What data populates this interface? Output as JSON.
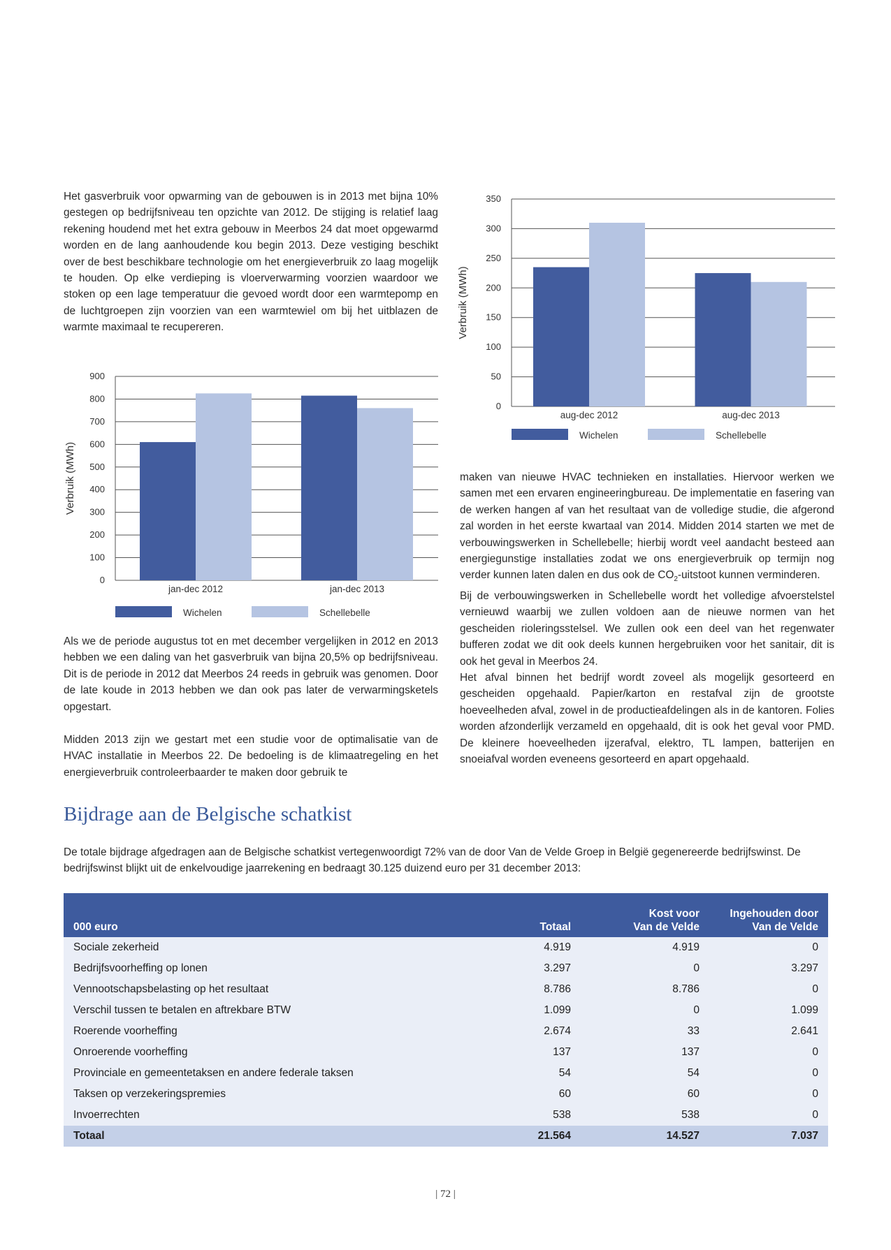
{
  "paragraphs": {
    "intro_left": "Het gasverbruik voor opwarming van de gebouwen is in 2013 met bijna 10% gestegen op bedrijfsniveau ten opzichte van 2012. De stijging is relatief laag rekening houdend met het extra gebouw in Meerbos 24 dat moet opgewarmd worden en de lang aanhoudende kou begin 2013. Deze vestiging beschikt over de best beschikbare technologie om het energieverbruik zo laag mogelijk te houden. Op elke verdieping is vloerverwarming voorzien waardoor we stoken op een lage temperatuur die gevoed wordt door een warmtepomp en de luchtgroepen zijn voorzien van een warmtewiel om bij het uitblazen de warmte maximaal te recupereren.",
    "compare_left": "Als we de periode augustus tot en met december vergelijken in 2012 en 2013 hebben we een daling van het gasverbruik van bijna 20,5% op bedrijfsniveau. Dit is de periode in 2012 dat Meerbos 24 reeds in gebruik was genomen. Door de late koude in 2013 hebben we dan ook pas later de verwarmingsketels opgestart.",
    "study_left": "Midden 2013 zijn we gestart met een studie voor de optimalisatie van de HVAC installatie in Meerbos 22. De bedoeling is de klimaatregeling en het energieverbruik controleerbaarder te maken door gebruik te",
    "right_1_before": "maken van nieuwe HVAC technieken en installaties. Hiervoor werken we samen met een ervaren engineeringbureau. De implementatie en fasering van de werken hangen af van het resultaat van de volledige studie, die afgerond zal worden in het eerste kwartaal van 2014. Midden 2014 starten we met de verbouwingswerken in Schellebelle; hierbij wordt veel aandacht besteed aan energiegunstige installaties zodat we ons energieverbruik op termijn nog verder kunnen laten dalen en dus ook de CO",
    "right_1_sub": "2",
    "right_1_after": "-uitstoot kunnen verminderen.",
    "right_2": "Bij de verbouwingswerken in Schellebelle wordt het volledige afvoerstelstel vernieuwd waarbij we zullen voldoen aan de nieuwe normen van het gescheiden rioleringsstelsel. We zullen ook een deel van het regenwater bufferen zodat we dit ook deels kunnen hergebruiken voor het sanitair, dit is ook het geval in Meerbos 24.",
    "right_3": "Het afval binnen het bedrijf wordt zoveel als mogelijk gesorteerd en gescheiden opgehaald. Papier/karton en restafval zijn de grootste hoeveelheden afval, zowel in de productieafdelingen als in de kantoren. Folies worden afzonderlijk verzameld en opgehaald, dit is ook het geval voor PMD. De kleinere hoeveelheden ijzerafval, elektro, TL lampen, batterijen en snoeiafval worden eveneens gesorteerd en apart opgehaald."
  },
  "chart_data": [
    {
      "id": "chart_jan_dec",
      "type": "bar",
      "categories": [
        "jan-dec 2012",
        "jan-dec 2013"
      ],
      "series": [
        {
          "name": "Wichelen",
          "values": [
            610,
            815
          ],
          "color": "#425c9e"
        },
        {
          "name": "Schellebelle",
          "values": [
            825,
            760
          ],
          "color": "#b5c4e2"
        }
      ],
      "title": "",
      "xlabel": "",
      "ylabel": "Verbruik (MWh)",
      "ylim": [
        0,
        900
      ],
      "yticks": [
        "0",
        "100",
        "200",
        "300",
        "400",
        "500",
        "600",
        "700",
        "800",
        "900"
      ],
      "grid": true,
      "legend": "bottom"
    },
    {
      "id": "chart_aug_dec",
      "type": "bar",
      "categories": [
        "aug-dec 2012",
        "aug-dec 2013"
      ],
      "series": [
        {
          "name": "Wichelen",
          "values": [
            235,
            225
          ],
          "color": "#425c9e"
        },
        {
          "name": "Schellebelle",
          "values": [
            310,
            210
          ],
          "color": "#b5c4e2"
        }
      ],
      "title": "",
      "xlabel": "",
      "ylabel": "Verbruik (MWh)",
      "ylim": [
        0,
        350
      ],
      "yticks": [
        "0",
        "50",
        "100",
        "150",
        "200",
        "250",
        "300",
        "350"
      ],
      "grid": true,
      "legend": "bottom"
    }
  ],
  "section": {
    "title": "Bijdrage aan de Belgische schatkist",
    "intro": "De totale bijdrage afgedragen aan de Belgische schatkist vertegenwoordigt 72% van de door Van de Velde Groep in België gegenereerde bedrijfswinst. De bedrijfswinst blijkt uit de enkelvoudige jaarrekening en bedraagt 30.125 duizend euro per 31 december 2013:"
  },
  "table": {
    "headers": {
      "label": "000 euro",
      "total": "Totaal",
      "cost_1": "Kost voor",
      "cost_2": "Van de Velde",
      "withheld_1": "Ingehouden door",
      "withheld_2": "Van de Velde"
    },
    "rows": [
      {
        "label": "Sociale zekerheid",
        "total": "4.919",
        "cost": "4.919",
        "withheld": "0"
      },
      {
        "label": "Bedrijfsvoorheffing op lonen",
        "total": "3.297",
        "cost": "0",
        "withheld": "3.297"
      },
      {
        "label": "Vennootschapsbelasting op het resultaat",
        "total": "8.786",
        "cost": "8.786",
        "withheld": "0"
      },
      {
        "label": "Verschil tussen te betalen en aftrekbare BTW",
        "total": "1.099",
        "cost": "0",
        "withheld": "1.099"
      },
      {
        "label": "Roerende voorheffing",
        "total": "2.674",
        "cost": "33",
        "withheld": "2.641"
      },
      {
        "label": "Onroerende voorheffing",
        "total": "137",
        "cost": "137",
        "withheld": "0"
      },
      {
        "label": "Provinciale en gemeentetaksen en andere federale taksen",
        "total": "54",
        "cost": "54",
        "withheld": "0"
      },
      {
        "label": "Taksen op verzekeringspremies",
        "total": "60",
        "cost": "60",
        "withheld": "0"
      },
      {
        "label": "Invoerrechten",
        "total": "538",
        "cost": "538",
        "withheld": "0"
      }
    ],
    "total_row": {
      "label": "Totaal",
      "total": "21.564",
      "cost": "14.527",
      "withheld": "7.037"
    }
  },
  "page": {
    "number": "| 72 |"
  }
}
